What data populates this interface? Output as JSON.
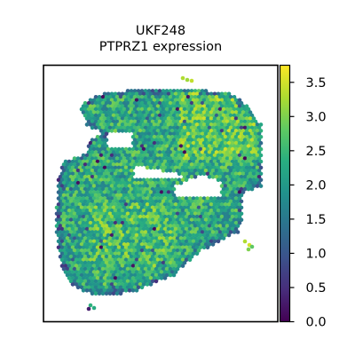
{
  "chart_data": {
    "type": "scatter",
    "title": "UKF248",
    "subtitle": "PTPRZ1 expression",
    "xlabel": "",
    "ylabel": "",
    "grid": false,
    "colorbar": {
      "colormap": "viridis",
      "range": [
        0.0,
        3.75
      ],
      "ticks": [
        0.0,
        0.5,
        1.0,
        1.5,
        2.0,
        2.5,
        3.0,
        3.5
      ],
      "tick_labels": [
        "0.0",
        "0.5",
        "1.0",
        "1.5",
        "2.0",
        "2.5",
        "3.0",
        "3.5"
      ]
    },
    "series": [
      {
        "marker": "hexagonal spots",
        "value_range": [
          0.0,
          3.7
        ],
        "typical_value": 2.4
      }
    ]
  }
}
